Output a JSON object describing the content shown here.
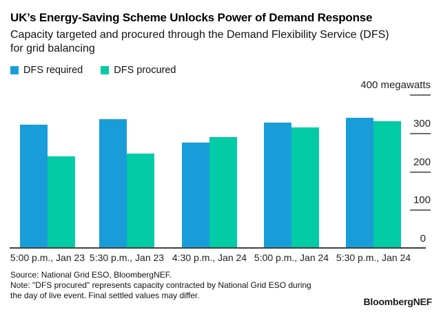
{
  "header": {
    "title": "UK’s Energy-Saving Scheme Unlocks Power of Demand Response",
    "subtitle_lines": [
      "Capacity targeted and procured through the Demand Flexibility Service (DFS)",
      "for grid balancing"
    ]
  },
  "legend": [
    {
      "label": "DFS required",
      "color": "#199dd8",
      "icon": "blue-square-icon"
    },
    {
      "label": "DFS procured",
      "color": "#02cba5",
      "icon": "teal-square-icon"
    }
  ],
  "chart_data": {
    "type": "bar",
    "title": "UK’s Energy-Saving Scheme Unlocks Power of Demand Response",
    "subtitle": "Capacity targeted and procured through the Demand Flexibility Service (DFS) for grid balancing",
    "unit": "megawatts",
    "categories": [
      "5:00 p.m., Jan 23",
      "5:30 p.m., Jan 23",
      "4:30 p.m., Jan 24",
      "5:00 p.m., Jan 24",
      "5:30 p.m., Jan 24"
    ],
    "series": [
      {
        "name": "DFS required",
        "color": "#199dd8",
        "values": [
          321,
          335,
          274,
          327,
          339
        ]
      },
      {
        "name": "DFS procured",
        "color": "#02cba5",
        "values": [
          239,
          245,
          288,
          314,
          330
        ]
      }
    ],
    "ylim": [
      0,
      400
    ],
    "yticks": [
      0,
      100,
      200,
      300,
      400
    ],
    "ytick_labels": [
      "0",
      "100",
      "200",
      "300",
      "400 megawatts"
    ],
    "axis_side": "right",
    "grid": false,
    "legend_position": "top-left"
  },
  "footer": {
    "source": "Source: National Grid ESO, BloombergNEF.",
    "note_lines": [
      "Note: \"DFS procured\" represents capacity contracted by National Grid ESO during",
      "the day of live event. Final settled values may differ."
    ],
    "brand": "BloombergNEF"
  }
}
